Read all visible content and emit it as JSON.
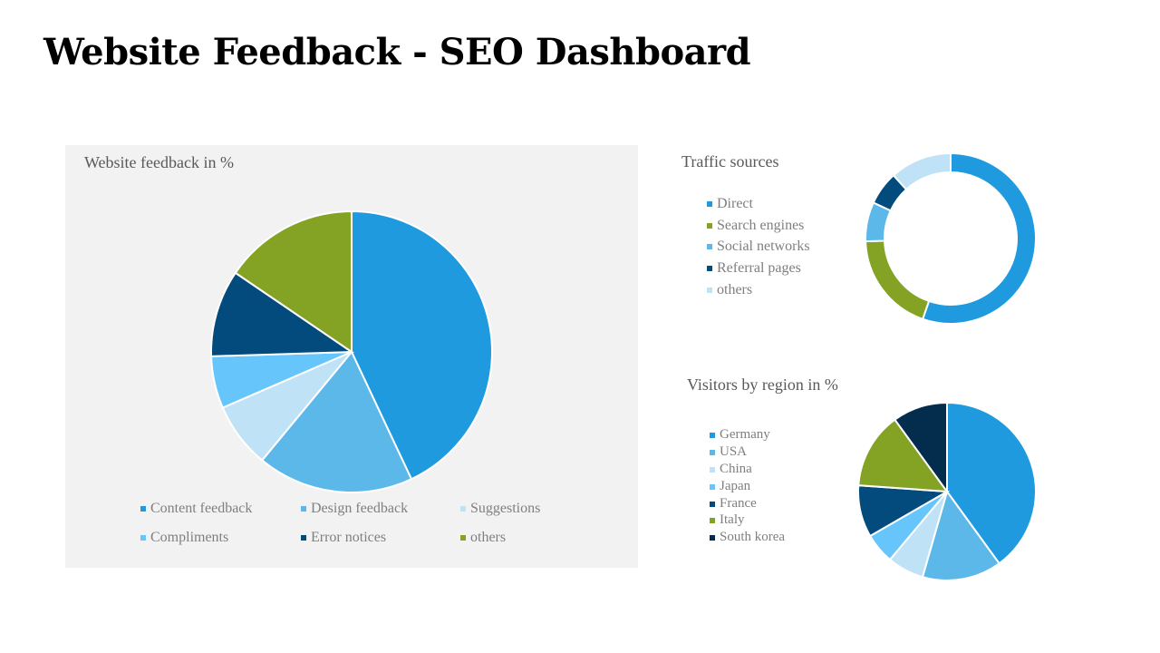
{
  "header": {
    "title": "Website Feedback - SEO Dashboard"
  },
  "chart_data": [
    {
      "type": "pie",
      "title": "Website feedback in %",
      "categories": [
        "Content feedback",
        "Design feedback",
        "Suggestions",
        "Compliments",
        "Error notices",
        "others"
      ],
      "values": [
        43,
        18,
        7.5,
        6,
        10,
        15.5
      ],
      "colors": [
        "#1f9ade",
        "#5db8ea",
        "#bfe2f6",
        "#66c5fb",
        "#034b7d",
        "#84a325"
      ],
      "legend": "bottom"
    },
    {
      "type": "pie",
      "subtype": "donut",
      "title": "Traffic sources",
      "categories": [
        "Direct",
        "Search engines",
        "Social networks",
        "Referral pages",
        "others"
      ],
      "values": [
        52,
        18,
        7,
        6,
        11
      ],
      "colors": [
        "#1f9ade",
        "#84a325",
        "#5db8ea",
        "#034b7d",
        "#bfe2f6"
      ],
      "legend": "left"
    },
    {
      "type": "pie",
      "title": "Visitors by region in %",
      "categories": [
        "Germany",
        "USA",
        "China",
        "Japan",
        "France",
        "Italy",
        "South korea"
      ],
      "values": [
        36,
        13,
        6,
        5,
        8.5,
        12.5,
        9
      ],
      "colors": [
        "#1f9ade",
        "#5db8ea",
        "#bfe2f6",
        "#66c5fb",
        "#034b7d",
        "#84a325",
        "#032c4d"
      ],
      "legend": "left"
    }
  ]
}
